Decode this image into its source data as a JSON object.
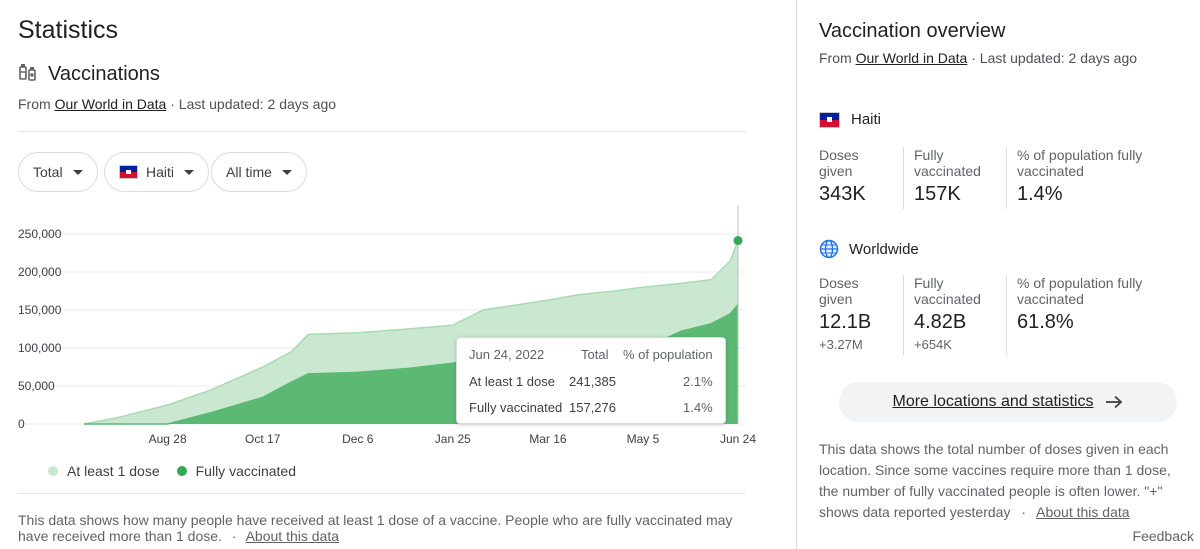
{
  "page_title": "Statistics",
  "section": {
    "title": "Vaccinations",
    "icon": "syringe-icon",
    "source_prefix": "From",
    "source_link": "Our World in Data",
    "updated": "· Last updated: 2 days ago"
  },
  "filters": {
    "metric": "Total",
    "location": "Haiti",
    "range": "All time"
  },
  "colors": {
    "at_least_one": "#c9e8cf",
    "at_least_one_line": "#a8dab4",
    "fully": "#5bb974",
    "dot": "#34a853"
  },
  "chart_data": {
    "type": "area",
    "title": "",
    "xlabel": "",
    "ylabel": "",
    "ylim": [
      0,
      250000
    ],
    "yticks": [
      "250,000",
      "200,000",
      "150,000",
      "100,000",
      "50,000",
      "0"
    ],
    "xticks": [
      "Aug 28",
      "Oct 17",
      "Dec 6",
      "Jan 25",
      "Mar 16",
      "May 5",
      "Jun 24"
    ],
    "x": [
      "Jul 15",
      "Aug 1",
      "Aug 28",
      "Sep 20",
      "Oct 17",
      "Nov 1",
      "Nov 10",
      "Dec 6",
      "Jan 1",
      "Jan 25",
      "Feb 10",
      "Mar 16",
      "Apr 1",
      "Apr 20",
      "May 5",
      "May 25",
      "Jun 10",
      "Jun 20",
      "Jun 24"
    ],
    "series": [
      {
        "name": "At least 1 dose",
        "values": [
          0,
          8000,
          25000,
          45000,
          75000,
          95000,
          118000,
          120000,
          125000,
          130000,
          150000,
          163000,
          170000,
          175000,
          180000,
          185000,
          190000,
          215000,
          241385
        ]
      },
      {
        "name": "Fully vaccinated",
        "values": [
          0,
          0,
          0,
          15000,
          35000,
          55000,
          66000,
          68000,
          73000,
          80000,
          88000,
          93000,
          93000,
          95000,
          99000,
          122000,
          132000,
          145000,
          157276
        ]
      }
    ],
    "legend": "bottom",
    "grid": true
  },
  "tooltip": {
    "date": "Jun 24, 2022",
    "col_total": "Total",
    "col_pct": "% of population",
    "rows": [
      {
        "label": "At least 1 dose",
        "total": "241,385",
        "pct": "2.1%"
      },
      {
        "label": "Fully vaccinated",
        "total": "157,276",
        "pct": "1.4%"
      }
    ]
  },
  "legend": [
    {
      "label": "At least 1 dose",
      "color": "#c9e8cf"
    },
    {
      "label": "Fully vaccinated",
      "color": "#34a853"
    }
  ],
  "footnote": {
    "text": "This data shows how many people have received at least 1 dose of a vaccine. People who are fully vaccinated may have received more than 1 dose.",
    "sep": "·",
    "link": "About this data"
  },
  "overview": {
    "title": "Vaccination overview",
    "source_prefix": "From",
    "source_link": "Our World in Data",
    "updated": "· Last updated: 2 days ago",
    "haiti": {
      "name": "Haiti",
      "stats": [
        {
          "label": "Doses given",
          "value": "343K"
        },
        {
          "label": "Fully vaccinated",
          "value": "157K"
        },
        {
          "label": "% of population fully vaccinated",
          "value": "1.4%"
        }
      ]
    },
    "world": {
      "name": "Worldwide",
      "icon": "globe-icon",
      "stats": [
        {
          "label": "Doses given",
          "value": "12.1B",
          "delta": "+3.27M"
        },
        {
          "label": "Fully vaccinated",
          "value": "4.82B",
          "delta": "+654K"
        },
        {
          "label": "% of population fully vaccinated",
          "value": "61.8%"
        }
      ]
    },
    "more_button": "More locations and statistics",
    "note": "This data shows the total number of doses given in each location. Since some vaccines require more than 1 dose, the number of fully vaccinated people is often lower. \"+\" shows data reported yesterday",
    "note_sep": "·",
    "note_link": "About this data"
  },
  "feedback": "Feedback"
}
